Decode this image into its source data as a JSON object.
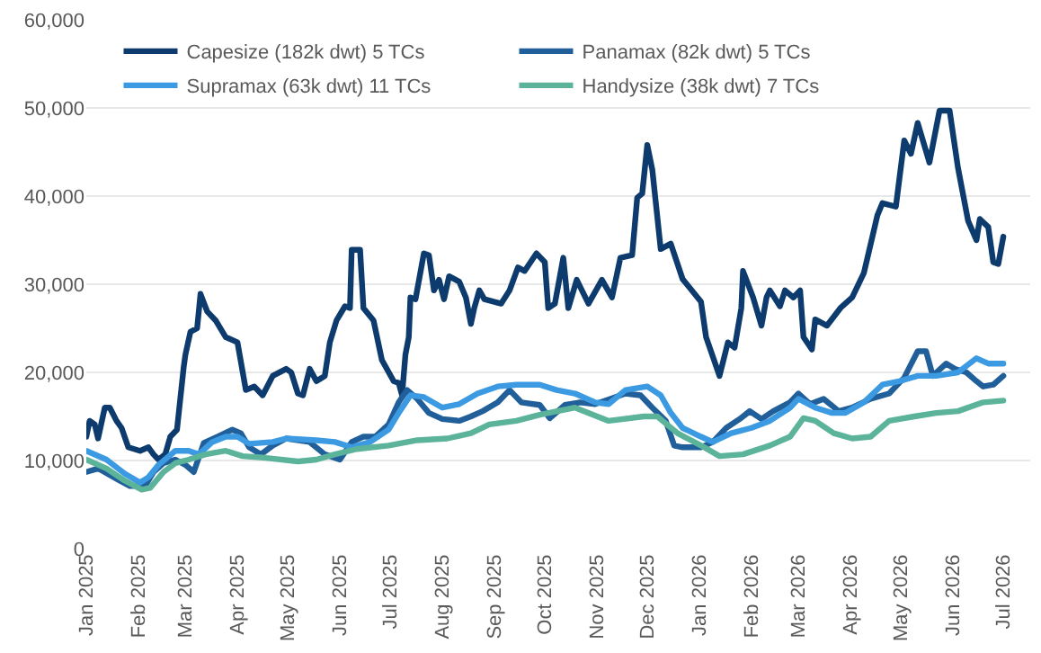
{
  "chart_data": {
    "type": "line",
    "xlim": [
      "2025-01-01",
      "2026-07-17"
    ],
    "xticks": [
      {
        "value": "2025-01-01",
        "label": "Jan 2025"
      },
      {
        "value": "2025-02-01",
        "label": "Feb 2025"
      },
      {
        "value": "2025-03-01",
        "label": "Mar 2025"
      },
      {
        "value": "2025-04-01",
        "label": "Apr 2025"
      },
      {
        "value": "2025-05-01",
        "label": "May 2025"
      },
      {
        "value": "2025-06-01",
        "label": "Jun 2025"
      },
      {
        "value": "2025-07-01",
        "label": "Jul 2025"
      },
      {
        "value": "2025-08-01",
        "label": "Aug 2025"
      },
      {
        "value": "2025-09-01",
        "label": "Sep 2025"
      },
      {
        "value": "2025-10-01",
        "label": "Oct 2025"
      },
      {
        "value": "2025-11-01",
        "label": "Nov 2025"
      },
      {
        "value": "2025-12-01",
        "label": "Dec 2025"
      },
      {
        "value": "2026-01-01",
        "label": "Jan 2026"
      },
      {
        "value": "2026-02-01",
        "label": "Feb 2026"
      },
      {
        "value": "2026-03-01",
        "label": "Mar 2026"
      },
      {
        "value": "2026-04-01",
        "label": "Apr 2026"
      },
      {
        "value": "2026-05-01",
        "label": "May 2026"
      },
      {
        "value": "2026-06-01",
        "label": "Jun 2026"
      },
      {
        "value": "2026-07-01",
        "label": "Jul 2026"
      }
    ],
    "ylim": [
      0,
      60000
    ],
    "yticks": [
      {
        "value": 0,
        "label": "0"
      },
      {
        "value": 10000,
        "label": "10,000"
      },
      {
        "value": 20000,
        "label": "20,000"
      },
      {
        "value": 30000,
        "label": "30,000"
      },
      {
        "value": 40000,
        "label": "40,000"
      },
      {
        "value": 50000,
        "label": "50,000"
      },
      {
        "value": 60000,
        "label": "60,000"
      }
    ],
    "grid": "y",
    "legend": "top left",
    "marker": "none",
    "line_style": "solid",
    "series": [
      {
        "name": "Capesize (182k dwt) 5 TCs",
        "color": "#0d3b6e",
        "x": [
          "2025-01-01",
          "2025-01-03",
          "2025-01-06",
          "2025-01-08",
          "2025-01-12",
          "2025-01-15",
          "2025-01-19",
          "2025-01-22",
          "2025-01-26",
          "2025-02-02",
          "2025-02-07",
          "2025-02-10",
          "2025-02-13",
          "2025-02-17",
          "2025-02-20",
          "2025-02-24",
          "2025-02-28",
          "2025-03-01",
          "2025-03-04",
          "2025-03-08",
          "2025-03-10",
          "2025-03-14",
          "2025-03-19",
          "2025-03-25",
          "2025-04-01",
          "2025-04-06",
          "2025-04-11",
          "2025-04-16",
          "2025-04-22",
          "2025-04-30",
          "2025-05-03",
          "2025-05-07",
          "2025-05-10",
          "2025-05-14",
          "2025-05-18",
          "2025-05-23",
          "2025-05-26",
          "2025-05-30",
          "2025-06-04",
          "2025-06-07",
          "2025-06-08",
          "2025-06-13",
          "2025-06-15",
          "2025-06-21",
          "2025-06-26",
          "2025-07-03",
          "2025-07-06",
          "2025-07-08",
          "2025-07-10",
          "2025-07-12",
          "2025-07-13",
          "2025-07-16",
          "2025-07-21",
          "2025-07-24",
          "2025-07-27",
          "2025-07-30",
          "2025-08-02",
          "2025-08-05",
          "2025-08-11",
          "2025-08-15",
          "2025-08-18",
          "2025-08-20",
          "2025-08-23",
          "2025-08-26",
          "2025-09-05",
          "2025-09-10",
          "2025-09-15",
          "2025-09-19",
          "2025-09-26",
          "2025-10-01",
          "2025-10-03",
          "2025-10-07",
          "2025-10-12",
          "2025-10-15",
          "2025-10-20",
          "2025-10-27",
          "2025-11-04",
          "2025-11-10",
          "2025-11-15",
          "2025-11-22",
          "2025-11-25",
          "2025-11-28",
          "2025-12-01",
          "2025-12-04",
          "2025-12-09",
          "2025-12-15",
          "2025-12-22",
          "2026-01-02",
          "2026-01-05",
          "2026-01-13",
          "2026-01-18",
          "2026-01-22",
          "2026-01-26",
          "2026-01-27",
          "2026-02-02",
          "2026-02-07",
          "2026-02-10",
          "2026-02-12",
          "2026-02-18",
          "2026-02-21",
          "2026-02-26",
          "2026-03-02",
          "2026-03-04",
          "2026-03-09",
          "2026-03-11",
          "2026-03-18",
          "2026-03-26",
          "2026-04-02",
          "2026-04-09",
          "2026-04-17",
          "2026-04-20",
          "2026-04-28",
          "2026-05-03",
          "2026-05-07",
          "2026-05-11",
          "2026-05-18",
          "2026-05-24",
          "2026-05-30",
          "2026-06-04",
          "2026-06-10",
          "2026-06-15",
          "2026-06-17",
          "2026-06-22",
          "2026-06-25",
          "2026-06-28",
          "2026-07-01"
        ],
        "values": [
          12700,
          14500,
          14100,
          12500,
          16000,
          16000,
          14500,
          13700,
          11500,
          11100,
          11500,
          10700,
          10100,
          10700,
          12700,
          13500,
          20600,
          22000,
          24600,
          25000,
          28900,
          26900,
          25900,
          24000,
          23400,
          18000,
          18400,
          17400,
          19600,
          20400,
          20000,
          17600,
          17400,
          20400,
          19000,
          19600,
          23400,
          25900,
          27500,
          27300,
          33900,
          33900,
          27300,
          25900,
          21400,
          19000,
          18800,
          17400,
          22000,
          24000,
          28500,
          28300,
          33500,
          33300,
          29300,
          30500,
          28300,
          30900,
          30300,
          28500,
          25500,
          27300,
          29300,
          28300,
          27800,
          29300,
          31900,
          31500,
          33500,
          32500,
          27300,
          27800,
          33000,
          27300,
          30500,
          27800,
          30500,
          28500,
          33000,
          33300,
          39800,
          40300,
          45800,
          43000,
          34000,
          34600,
          30600,
          28000,
          24000,
          19600,
          23400,
          22800,
          27300,
          31500,
          28500,
          25300,
          28500,
          29300,
          27500,
          29300,
          28500,
          29300,
          24000,
          22600,
          26000,
          25300,
          27300,
          28500,
          31300,
          37800,
          39200,
          38800,
          46300,
          44800,
          48300,
          43800,
          49700,
          49700,
          43200,
          37200,
          35000,
          37400,
          36500,
          32500,
          32300,
          35400
        ]
      },
      {
        "name": "Panamax (82k dwt) 5 TCs",
        "color": "#215f9a",
        "x": [
          "2025-01-01",
          "2025-01-08",
          "2025-01-21",
          "2025-01-27",
          "2025-02-05",
          "2025-02-10",
          "2025-02-16",
          "2025-02-23",
          "2025-03-01",
          "2025-03-06",
          "2025-03-12",
          "2025-03-20",
          "2025-03-29",
          "2025-04-03",
          "2025-04-08",
          "2025-04-15",
          "2025-04-22",
          "2025-04-30",
          "2025-05-14",
          "2025-05-23",
          "2025-06-01",
          "2025-06-08",
          "2025-06-15",
          "2025-06-22",
          "2025-06-30",
          "2025-07-06",
          "2025-07-11",
          "2025-07-17",
          "2025-07-24",
          "2025-08-01",
          "2025-08-11",
          "2025-08-18",
          "2025-08-25",
          "2025-09-03",
          "2025-09-10",
          "2025-09-17",
          "2025-09-28",
          "2025-10-04",
          "2025-10-13",
          "2025-10-22",
          "2025-10-31",
          "2025-11-09",
          "2025-11-18",
          "2025-11-27",
          "2025-12-04",
          "2025-12-12",
          "2025-12-17",
          "2025-12-22",
          "2026-01-02",
          "2026-01-09",
          "2026-01-17",
          "2026-01-25",
          "2026-01-31",
          "2026-02-07",
          "2026-02-14",
          "2026-02-24",
          "2026-03-01",
          "2026-03-08",
          "2026-03-16",
          "2026-03-25",
          "2026-04-02",
          "2026-04-13",
          "2026-04-24",
          "2026-05-03",
          "2026-05-11",
          "2026-05-16",
          "2026-05-20",
          "2026-05-28",
          "2026-06-02",
          "2026-06-09",
          "2026-06-15",
          "2026-06-19",
          "2026-06-25",
          "2026-07-01"
        ],
        "values": [
          8700,
          9100,
          7700,
          7100,
          7100,
          8700,
          9700,
          10100,
          9500,
          8700,
          12000,
          12700,
          13500,
          13100,
          11500,
          10700,
          11700,
          12500,
          12100,
          10700,
          10100,
          12100,
          12700,
          12700,
          14100,
          16600,
          18000,
          17000,
          15400,
          14700,
          14500,
          15000,
          15600,
          16600,
          18000,
          16600,
          16300,
          14800,
          16300,
          16600,
          16400,
          17000,
          17600,
          17400,
          16000,
          14500,
          11700,
          11500,
          11500,
          12100,
          13700,
          14700,
          15600,
          14700,
          15600,
          16600,
          17600,
          16400,
          17000,
          15600,
          16000,
          17000,
          17600,
          19400,
          22400,
          22400,
          19600,
          21000,
          20400,
          20000,
          19000,
          18400,
          18600,
          19600
        ]
      },
      {
        "name": "Supramax (63k dwt) 11 TCs",
        "color": "#3b9ae1",
        "x": [
          "2025-01-01",
          "2025-01-13",
          "2025-01-24",
          "2025-02-02",
          "2025-02-07",
          "2025-02-13",
          "2025-02-23",
          "2025-03-03",
          "2025-03-09",
          "2025-03-17",
          "2025-03-25",
          "2025-04-01",
          "2025-04-08",
          "2025-04-22",
          "2025-04-30",
          "2025-05-18",
          "2025-05-29",
          "2025-06-08",
          "2025-06-19",
          "2025-06-30",
          "2025-07-06",
          "2025-07-13",
          "2025-07-21",
          "2025-08-01",
          "2025-08-11",
          "2025-08-22",
          "2025-09-03",
          "2025-09-14",
          "2025-09-28",
          "2025-10-08",
          "2025-10-19",
          "2025-10-31",
          "2025-11-08",
          "2025-11-18",
          "2025-12-01",
          "2025-12-09",
          "2025-12-15",
          "2025-12-22",
          "2026-01-02",
          "2026-01-09",
          "2026-01-20",
          "2026-02-01",
          "2026-02-12",
          "2026-02-24",
          "2026-03-01",
          "2026-03-11",
          "2026-03-21",
          "2026-03-29",
          "2026-04-09",
          "2026-04-20",
          "2026-04-30",
          "2026-05-11",
          "2026-05-22",
          "2026-06-04",
          "2026-06-15",
          "2026-06-22",
          "2026-07-01"
        ],
        "values": [
          11100,
          10100,
          8500,
          7500,
          8100,
          9500,
          11100,
          11100,
          10700,
          12100,
          12700,
          12700,
          11900,
          12100,
          12500,
          12300,
          12100,
          11500,
          12100,
          13500,
          15400,
          17400,
          17200,
          16000,
          16400,
          17600,
          18400,
          18600,
          18600,
          18000,
          17600,
          16600,
          16400,
          18000,
          18400,
          17400,
          15400,
          13700,
          12700,
          12100,
          13100,
          13700,
          14500,
          16000,
          17000,
          16000,
          15400,
          15400,
          16600,
          18600,
          19000,
          19600,
          19600,
          20000,
          21600,
          21000,
          21000
        ]
      },
      {
        "name": "Handysize (38k dwt) 7 TCs",
        "color": "#5bb39a",
        "x": [
          "2025-01-01",
          "2025-01-13",
          "2025-01-24",
          "2025-02-03",
          "2025-02-08",
          "2025-02-16",
          "2025-02-23",
          "2025-03-03",
          "2025-03-13",
          "2025-03-25",
          "2025-04-04",
          "2025-04-18",
          "2025-05-07",
          "2025-05-18",
          "2025-05-29",
          "2025-06-11",
          "2025-06-30",
          "2025-07-17",
          "2025-08-04",
          "2025-08-18",
          "2025-08-29",
          "2025-09-14",
          "2025-09-28",
          "2025-10-19",
          "2025-11-08",
          "2025-11-29",
          "2025-12-07",
          "2025-12-19",
          "2026-01-02",
          "2026-01-13",
          "2026-01-27",
          "2026-02-12",
          "2026-02-24",
          "2026-03-04",
          "2026-03-11",
          "2026-03-22",
          "2026-04-02",
          "2026-04-13",
          "2026-04-24",
          "2026-05-09",
          "2026-05-22",
          "2026-06-04",
          "2026-06-19",
          "2026-07-01"
        ],
        "values": [
          10100,
          9100,
          7700,
          6700,
          6900,
          8700,
          9700,
          10100,
          10700,
          11100,
          10500,
          10300,
          9900,
          10100,
          10700,
          11300,
          11700,
          12300,
          12500,
          13100,
          14100,
          14500,
          15200,
          16000,
          14500,
          15000,
          15000,
          13100,
          11700,
          10500,
          10700,
          11700,
          12700,
          14800,
          14500,
          13100,
          12500,
          12700,
          14500,
          15000,
          15400,
          15600,
          16600,
          16800
        ]
      }
    ]
  }
}
